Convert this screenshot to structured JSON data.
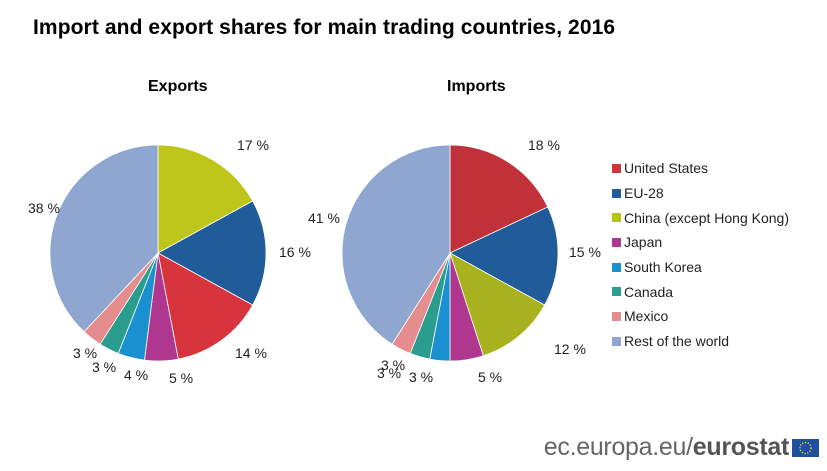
{
  "title": "Import and export shares for main trading countries, 2016",
  "footer": {
    "site": "ec.europa.eu/",
    "brand": "eurostat",
    "flag_icon": "eu-flag-icon"
  },
  "legend": [
    {
      "label": "United States",
      "color": "#d0313a"
    },
    {
      "label": "EU-28",
      "color": "#1f5c99"
    },
    {
      "label": "China (except Hong Kong)",
      "color": "#b8c31a"
    },
    {
      "label": "Japan",
      "color": "#b0378f"
    },
    {
      "label": "South Korea",
      "color": "#1a90d0"
    },
    {
      "label": "Canada",
      "color": "#2a9d8f"
    },
    {
      "label": "Mexico",
      "color": "#e58c8e"
    },
    {
      "label": "Rest of the world",
      "color": "#8ea6d0"
    }
  ],
  "chart_data": [
    {
      "type": "pie",
      "title": "Exports",
      "categories": [
        "China (except Hong Kong)",
        "EU-28",
        "United States",
        "Japan",
        "South Korea",
        "Canada",
        "Mexico",
        "Rest of the world"
      ],
      "values": [
        17,
        16,
        14,
        5,
        4,
        3,
        3,
        38
      ],
      "colors": [
        "#bec61c",
        "#1f5c99",
        "#d8343e",
        "#b0378f",
        "#1a90d0",
        "#2a9d8f",
        "#e58c8e",
        "#8ea6d0"
      ],
      "labels": [
        "17 %",
        "16 %",
        "14 %",
        "5 %",
        "4 %",
        "3 %",
        "3 %",
        "38 %"
      ],
      "legend_position": "right"
    },
    {
      "type": "pie",
      "title": "Imports",
      "categories": [
        "United States",
        "EU-28",
        "China (except Hong Kong)",
        "Japan",
        "South Korea",
        "Canada",
        "Mexico",
        "Rest of the world"
      ],
      "values": [
        18,
        15,
        12,
        5,
        3,
        3,
        3,
        41
      ],
      "colors": [
        "#c0313a",
        "#1f5c99",
        "#a8b21e",
        "#b0378f",
        "#1a90d0",
        "#2a9d8f",
        "#e58c8e",
        "#8ea6d0"
      ],
      "labels": [
        "18 %",
        "15 %",
        "12 %",
        "5 %",
        "3 %",
        "3 %",
        "3 %",
        "41 %"
      ],
      "legend_position": "right"
    }
  ]
}
